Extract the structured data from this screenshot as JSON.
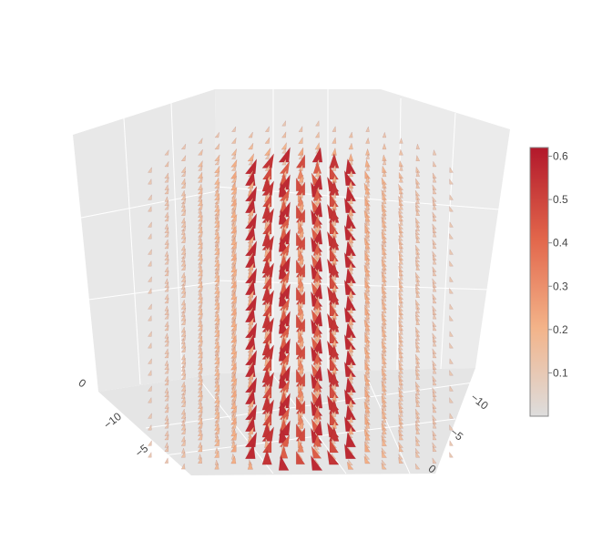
{
  "chart_data": {
    "type": "cone",
    "colorscale": [
      "#dddddd",
      "#f3b389",
      "#e2664b",
      "#b2182b"
    ],
    "colorbar": {
      "range": [
        0,
        0.62
      ],
      "ticks": [
        "0.1",
        "0.2",
        "0.3",
        "0.4",
        "0.5",
        "0.6"
      ]
    },
    "scene": {
      "grid": true,
      "background": "#ebebeb",
      "left_axis_ticks": [
        "0",
        "−10",
        "−5"
      ],
      "right_axis_ticks": [
        "−10",
        "−5",
        "0"
      ]
    },
    "vortex": {
      "core_radius": 5,
      "peak_magnitude": 0.6,
      "domain": [
        -12,
        12
      ]
    }
  }
}
